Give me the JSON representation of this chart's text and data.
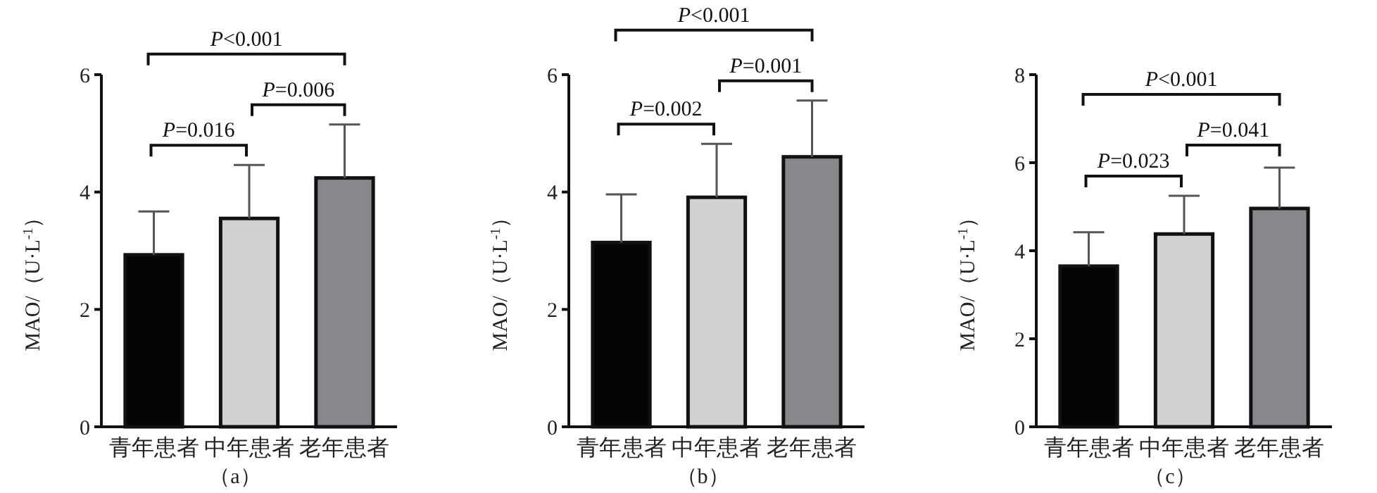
{
  "chart_data": [
    {
      "type": "bar",
      "categories": [
        "青年患者",
        "中年患者",
        "老年患者"
      ],
      "values": [
        2.93,
        3.55,
        4.24
      ],
      "colors": [
        "#050505",
        "#d0d1d3",
        "#87888c"
      ],
      "errors": [
        [
          2.93,
          3.67
        ],
        [
          3.55,
          4.46
        ],
        [
          4.24,
          5.15
        ]
      ],
      "ylim": [
        0,
        6
      ],
      "yticks": [
        0,
        2,
        4,
        6
      ],
      "ylabel": "MAO/（U·L$^{-1}$）",
      "xlabel": "（a）",
      "annotations": [
        "P=0.016",
        "P=0.006",
        "P<0.001"
      ],
      "grid": false
    },
    {
      "type": "bar",
      "categories": [
        "青年患者",
        "中年患者",
        "老年患者"
      ],
      "values": [
        3.14,
        3.91,
        4.6
      ],
      "colors": [
        "#050505",
        "#d0d1d3",
        "#87888c"
      ],
      "errors": [
        [
          3.14,
          3.96
        ],
        [
          3.91,
          4.82
        ],
        [
          4.6,
          5.56
        ]
      ],
      "ylim": [
        0,
        6
      ],
      "yticks": [
        0,
        2,
        4,
        6
      ],
      "ylabel": "MAO/（U·L$^{-1}$）",
      "xlabel": "（b）",
      "annotations": [
        "P=0.002",
        "P=0.001",
        "P<0.001"
      ],
      "grid": false
    },
    {
      "type": "bar",
      "categories": [
        "青年患者",
        "中年患者",
        "老年患者"
      ],
      "values": [
        3.65,
        4.38,
        4.96
      ],
      "colors": [
        "#050505",
        "#d0d1d3",
        "#87888c"
      ],
      "errors": [
        [
          3.65,
          4.42
        ],
        [
          4.38,
          5.25
        ],
        [
          4.96,
          5.89
        ]
      ],
      "ylim": [
        0,
        8
      ],
      "yticks": [
        0,
        2,
        4,
        6,
        8
      ],
      "ylabel": "MAO/（U·L$^{-1}$）",
      "xlabel": "（c）",
      "annotations": [
        "P=0.023",
        "P=0.041",
        "P<0.001"
      ],
      "grid": false
    }
  ]
}
